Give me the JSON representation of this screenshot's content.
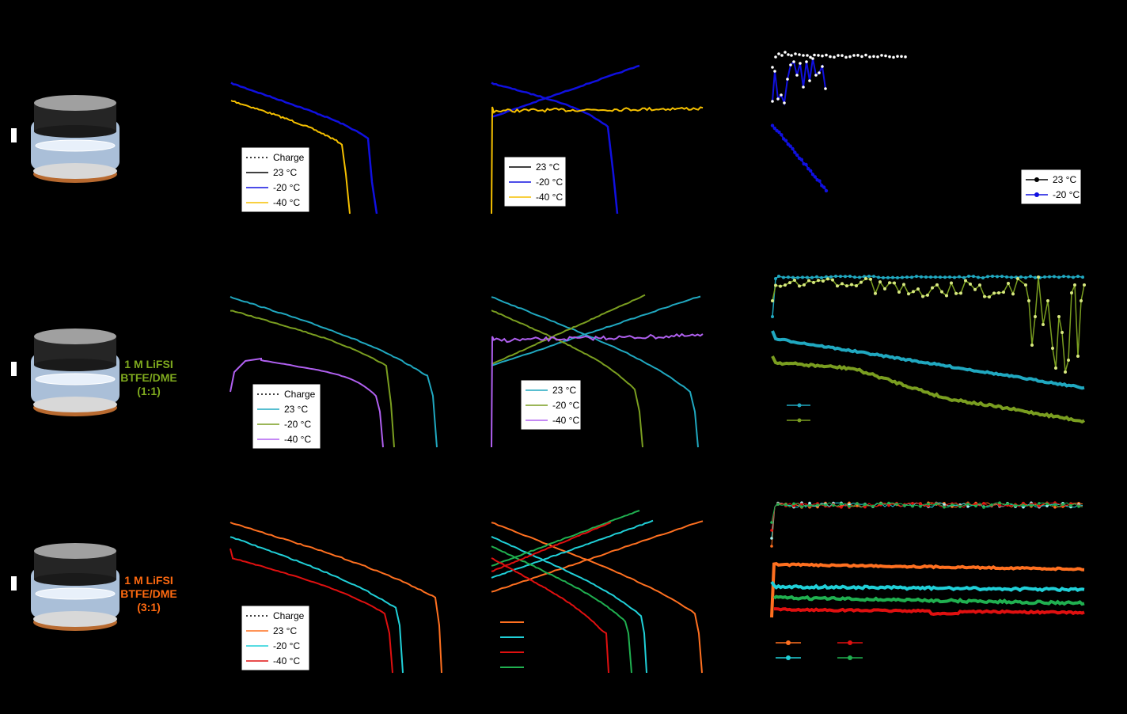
{
  "rows": [
    {
      "label": "",
      "color": "#000000"
    },
    {
      "label": "1 M LiFSI\nBTFE/DME\n(1:1)",
      "color": "#7faa1e"
    },
    {
      "label": "1 M LiFSI\nBTFE/DME\n(3:1)",
      "color": "#ff6a10"
    }
  ],
  "colors": {
    "r0": {
      "c23": "#000000",
      "c20": "#1010e0",
      "c40": "#f5c000"
    },
    "r1": {
      "c23": "#20a8c0",
      "c20": "#7a9e20",
      "c40": "#b060f0"
    },
    "r2": {
      "c23": "#ff7020",
      "c20": "#20d0d8",
      "c40": "#e01010",
      "c40b": "#20b050"
    }
  },
  "legends": {
    "r0_voltage": [
      "Charge",
      "23 °C",
      "-20 °C",
      "-40 °C"
    ],
    "r0_capacity": [
      "23 °C",
      "-20 °C",
      "-40 °C"
    ],
    "r0_cycle": [
      "23 °C",
      "-20 °C"
    ],
    "r1_voltage": [
      "Charge",
      "23 °C",
      "-20 °C",
      "-40 °C"
    ],
    "r1_capacity": [
      "23 °C",
      "-20 °C",
      "-40 °C"
    ],
    "r2_voltage": [
      "Charge",
      "23 °C",
      "-20 °C",
      "-40 °C"
    ]
  },
  "chart_data": [
    {
      "type": "line",
      "row": 0,
      "panel": "discharge-voltage",
      "series": [
        {
          "name": "-20 °C",
          "x": [
            0,
            0.1,
            0.2,
            0.3,
            0.4,
            0.5,
            0.6,
            0.7,
            0.8,
            0.9,
            1.0
          ],
          "y": [
            4.0,
            3.95,
            3.9,
            3.85,
            3.8,
            3.75,
            3.7,
            3.62,
            3.45,
            3.0,
            2.5
          ]
        },
        {
          "name": "-40 °C",
          "x": [
            0,
            0.1,
            0.2,
            0.3,
            0.4,
            0.5,
            0.6,
            0.7,
            0.8,
            0.85
          ],
          "y": [
            3.8,
            3.75,
            3.7,
            3.62,
            3.55,
            3.45,
            3.3,
            3.0,
            2.7,
            2.5
          ]
        }
      ]
    },
    {
      "type": "line",
      "row": 0,
      "panel": "charge-discharge",
      "series": [
        {
          "name": "-20 °C",
          "x": [
            0,
            0.2,
            0.4,
            0.6,
            0.8,
            1.0
          ],
          "y": [
            3.9,
            3.95,
            4.0,
            3.9,
            3.5,
            2.5
          ]
        },
        {
          "name": "-40 °C",
          "x": [
            0,
            0.2,
            0.4,
            0.6,
            0.8,
            1.0
          ],
          "y": [
            3.7,
            3.7,
            3.7,
            3.7,
            3.7,
            3.7
          ]
        }
      ]
    },
    {
      "type": "scatter",
      "row": 0,
      "panel": "cycling",
      "series": [
        {
          "name": "23 °C",
          "x": [
            1,
            5,
            10,
            15,
            20,
            25,
            30,
            35,
            40,
            45,
            50
          ],
          "y": [
            99,
            99.5,
            99.6,
            99.5,
            99.4,
            99.5,
            99.4,
            99.5,
            99.4,
            99.5,
            99.4
          ]
        },
        {
          "name": "-20 °C",
          "x": [
            1,
            5,
            10,
            15,
            20,
            25,
            30
          ],
          "y": [
            95,
            85,
            90,
            97,
            94,
            96,
            93
          ]
        }
      ]
    },
    {
      "type": "line",
      "row": 1,
      "panel": "discharge-voltage",
      "series": [
        {
          "name": "23 °C",
          "x": [
            0,
            0.2,
            0.4,
            0.6,
            0.8,
            0.95,
            1.0
          ],
          "y": [
            4.1,
            3.95,
            3.85,
            3.75,
            3.65,
            3.3,
            2.5
          ]
        },
        {
          "name": "-20 °C",
          "x": [
            0,
            0.2,
            0.4,
            0.6,
            0.75,
            0.8
          ],
          "y": [
            4.0,
            3.85,
            3.75,
            3.65,
            3.4,
            2.5
          ]
        },
        {
          "name": "-40 °C",
          "x": [
            0,
            0.05,
            0.3,
            0.5,
            0.7,
            0.75
          ],
          "y": [
            2.6,
            3.6,
            3.55,
            3.45,
            3.2,
            2.5
          ]
        }
      ]
    },
    {
      "type": "line",
      "row": 1,
      "panel": "charge-discharge",
      "series": [
        {
          "name": "23 °C",
          "x": [
            0,
            0.5,
            1.0
          ],
          "y": [
            3.6,
            3.8,
            4.1
          ]
        },
        {
          "name": "-20 °C",
          "x": [
            0,
            0.5,
            0.9
          ],
          "y": [
            3.7,
            3.8,
            4.1
          ]
        },
        {
          "name": "-40 °C",
          "x": [
            0,
            0.5,
            1.0
          ],
          "y": [
            3.5,
            3.5,
            3.5
          ]
        }
      ]
    },
    {
      "type": "line",
      "row": 1,
      "panel": "cycling",
      "series": [
        {
          "name": "23 °C",
          "x": [
            1,
            100,
            200,
            300,
            400,
            500
          ],
          "y": [
            140,
            132,
            128,
            124,
            120,
            116
          ]
        },
        {
          "name": "-20 °C",
          "x": [
            1,
            100,
            200,
            300,
            400,
            500
          ],
          "y": [
            128,
            122,
            112,
            98,
            86,
            80
          ]
        }
      ]
    },
    {
      "type": "line",
      "row": 2,
      "panel": "discharge-voltage",
      "series": [
        {
          "name": "23 °C",
          "x": [
            0,
            0.5,
            0.9,
            1.0
          ],
          "y": [
            4.1,
            3.8,
            3.6,
            2.5
          ]
        },
        {
          "name": "-20 °C",
          "x": [
            0,
            0.5,
            0.8,
            0.85
          ],
          "y": [
            4.0,
            3.7,
            3.5,
            2.5
          ]
        },
        {
          "name": "-40 °C",
          "x": [
            0,
            0.5,
            0.75,
            0.8
          ],
          "y": [
            3.9,
            3.6,
            3.4,
            2.5
          ]
        }
      ]
    },
    {
      "type": "line",
      "row": 2,
      "panel": "cycling",
      "series": [
        {
          "name": "23 °C",
          "x": [
            1,
            500
          ],
          "y": [
            145,
            142
          ]
        },
        {
          "name": "-20 °C",
          "x": [
            1,
            500
          ],
          "y": [
            130,
            128
          ]
        },
        {
          "name": "-40 °C",
          "x": [
            1,
            500
          ],
          "y": [
            118,
            116
          ]
        }
      ]
    }
  ]
}
